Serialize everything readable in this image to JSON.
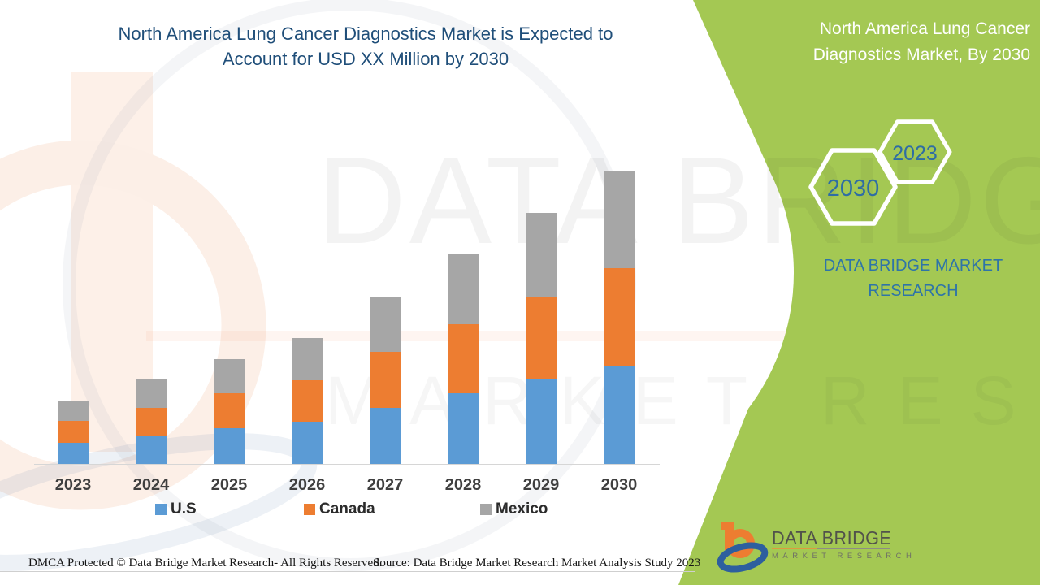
{
  "header": {
    "main_title_line1": "North America Lung Cancer Diagnostics Market is Expected to",
    "main_title_line2": "Account for USD XX Million by 2030",
    "panel_title_line1": "North America Lung Cancer",
    "panel_title_line2": "Diagnostics Market, By 2030"
  },
  "side_panel": {
    "hexagon_large_year": "2030",
    "hexagon_small_year": "2023",
    "brand_line1": "DATA BRIDGE MARKET",
    "brand_line2": "RESEARCH"
  },
  "chart_data": {
    "type": "bar",
    "stacked": true,
    "title": "North America Lung Cancer Diagnostics Market is Expected to Account for USD XX Million by 2030",
    "categories": [
      "2023",
      "2024",
      "2025",
      "2026",
      "2027",
      "2028",
      "2029",
      "2030"
    ],
    "series": [
      {
        "name": "U.S",
        "color": "#5b9bd5",
        "values": [
          26,
          35,
          44,
          52,
          69,
          87,
          104,
          120
        ]
      },
      {
        "name": "Canada",
        "color": "#ed7d31",
        "values": [
          27,
          34,
          43,
          51,
          69,
          85,
          102,
          121
        ]
      },
      {
        "name": "Mexico",
        "color": "#a6a6a6",
        "values": [
          25,
          35,
          42,
          52,
          68,
          86,
          103,
          120
        ]
      }
    ],
    "xlabel": "",
    "ylabel": "",
    "value_axis_visible": false,
    "values_unit": "relative index (actual values undisclosed, shown as USD XX Million)",
    "legend_position": "bottom",
    "grid": false
  },
  "watermark": {
    "line1": "DATA BRIDGE",
    "line2": "MARKET RESEARCH"
  },
  "logo": {
    "name": "DATA BRIDGE",
    "subtitle": "MARKET RESEARCH"
  },
  "footer": {
    "dmca": "DMCA Protected © Data Bridge Market Research- All Rights Reserved.",
    "source": "Source: Data Bridge Market Research Market Analysis Study 2023"
  },
  "colors": {
    "panel_green": "#a4c853",
    "title_blue": "#1f4e79",
    "accent_blue": "#2e74a8",
    "hex_year_blue": "#2e6da4",
    "us_blue": "#5b9bd5",
    "canada_orange": "#ed7d31",
    "mexico_gray": "#a6a6a6"
  }
}
